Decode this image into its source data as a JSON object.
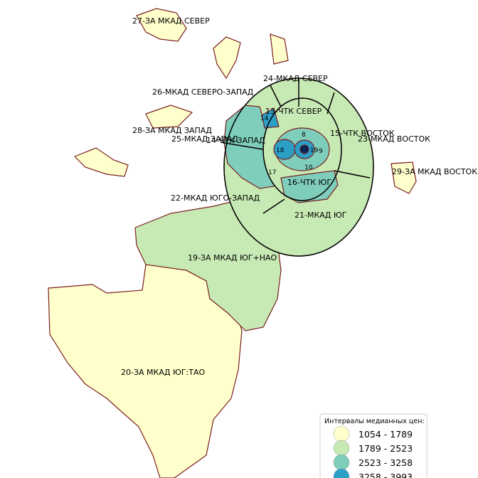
{
  "map": {
    "regions": [
      {
        "label": "27-ЗА МКАД СЕВЕР"
      },
      {
        "label": "24-МКАД СЕВЕР"
      },
      {
        "label": "26-МКАД СЕВЕРО-ЗАПАД"
      },
      {
        "label": "13-ЧТК СЕВЕР"
      },
      {
        "label": "15-ЧТК ВОСТОК"
      },
      {
        "label": "23-МКАД ВОСТОК"
      },
      {
        "label": "28-ЗА МКАД ЗАПАД"
      },
      {
        "label": "25-МКАД ЗАПАД"
      },
      {
        "label": "14-ЧТК ЗАПАД"
      },
      {
        "label": "29-ЗА МКАД ВОСТОК"
      },
      {
        "label": "16-ЧТК ЮГ"
      },
      {
        "label": "22-МКАД ЮГО-ЗАПАД"
      },
      {
        "label": "21-МКАД ЮГ"
      },
      {
        "label": "19-ЗА МКАД ЮГ+НАО"
      },
      {
        "label": "20-ЗА МКАД ЮГ:ТАО"
      }
    ],
    "small_labels": [
      "14",
      "8",
      "9",
      "10",
      "12",
      "17",
      "18",
      "19"
    ],
    "legend": {
      "title": "Интервалы медианных цен:",
      "items": [
        {
          "label": "1054 - 1789",
          "color": "#ffffcc"
        },
        {
          "label": "1789 - 2523",
          "color": "#c7e9b4"
        },
        {
          "label": "2523 - 3258",
          "color": "#7fcdbb"
        },
        {
          "label": "3258 - 3993",
          "color": "#2c9fc6"
        }
      ]
    }
  }
}
